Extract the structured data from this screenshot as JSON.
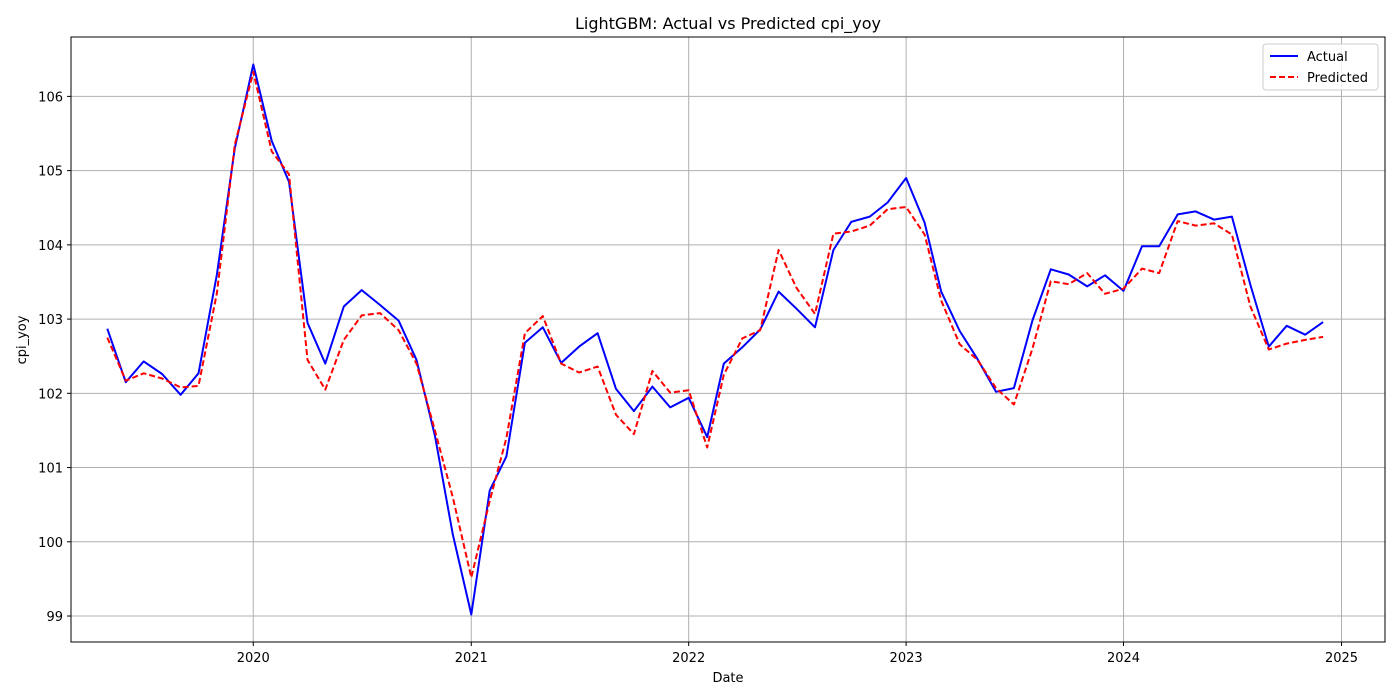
{
  "chart_data": {
    "type": "line",
    "title": "LightGBM: Actual vs Predicted cpi_yoy",
    "xlabel": "Date",
    "ylabel": "cpi_yoy",
    "x_ticks": [
      "2020",
      "2021",
      "2022",
      "2023",
      "2024",
      "2025"
    ],
    "y_ticks": [
      "99",
      "100",
      "101",
      "102",
      "103",
      "104",
      "105",
      "106"
    ],
    "xlim": [
      "2019-03-01",
      "2025-03-15"
    ],
    "ylim": [
      98.65,
      106.8
    ],
    "grid": true,
    "legend_position": "top-right",
    "x": [
      "2019-05-01",
      "2019-06-01",
      "2019-07-01",
      "2019-08-01",
      "2019-09-01",
      "2019-10-01",
      "2019-11-01",
      "2019-12-01",
      "2020-01-01",
      "2020-02-01",
      "2020-03-01",
      "2020-04-01",
      "2020-05-01",
      "2020-06-01",
      "2020-07-01",
      "2020-08-01",
      "2020-09-01",
      "2020-10-01",
      "2020-11-01",
      "2020-12-01",
      "2021-01-01",
      "2021-02-01",
      "2021-03-01",
      "2021-04-01",
      "2021-05-01",
      "2021-06-01",
      "2021-07-01",
      "2021-08-01",
      "2021-09-01",
      "2021-10-01",
      "2021-11-01",
      "2021-12-01",
      "2022-01-01",
      "2022-02-01",
      "2022-03-01",
      "2022-04-01",
      "2022-05-01",
      "2022-06-01",
      "2022-07-01",
      "2022-08-01",
      "2022-09-01",
      "2022-10-01",
      "2022-11-01",
      "2022-12-01",
      "2023-01-01",
      "2023-02-01",
      "2023-03-01",
      "2023-04-01",
      "2023-05-01",
      "2023-06-01",
      "2023-07-01",
      "2023-08-01",
      "2023-09-01",
      "2023-10-01",
      "2023-11-01",
      "2023-12-01",
      "2024-01-01",
      "2024-02-01",
      "2024-03-01",
      "2024-04-01",
      "2024-05-01",
      "2024-06-01",
      "2024-07-01",
      "2024-08-01",
      "2024-09-01",
      "2024-10-01",
      "2024-11-01",
      "2024-12-01"
    ],
    "series": [
      {
        "name": "Actual",
        "color": "#0000ff",
        "style": "solid",
        "values": [
          102.87,
          102.15,
          102.43,
          102.26,
          101.98,
          102.27,
          103.6,
          105.3,
          106.43,
          105.4,
          104.85,
          102.95,
          102.4,
          103.17,
          103.39,
          103.19,
          102.98,
          102.45,
          101.43,
          100.1,
          99.02,
          100.69,
          101.15,
          102.68,
          102.89,
          102.41,
          102.63,
          102.81,
          102.06,
          101.76,
          102.09,
          101.81,
          101.94,
          101.41,
          102.4,
          102.62,
          102.86,
          103.37,
          103.14,
          102.89,
          103.93,
          104.31,
          104.38,
          104.57,
          104.9,
          104.3,
          103.37,
          102.84,
          102.46,
          102.02,
          102.07,
          102.98,
          103.67,
          103.6,
          103.44,
          103.59,
          103.38,
          103.98,
          103.98,
          104.41,
          104.45,
          104.34,
          104.38,
          103.46,
          102.63,
          102.91,
          102.79,
          102.96
        ]
      },
      {
        "name": "Predicted",
        "color": "#ff0000",
        "style": "dashed",
        "values": [
          102.75,
          102.17,
          102.27,
          102.2,
          102.08,
          102.1,
          103.35,
          105.35,
          106.33,
          105.26,
          104.95,
          102.45,
          102.05,
          102.72,
          103.05,
          103.08,
          102.85,
          102.4,
          101.5,
          100.6,
          99.52,
          100.55,
          101.4,
          102.81,
          103.04,
          102.4,
          102.28,
          102.36,
          101.71,
          101.45,
          102.3,
          102.01,
          102.04,
          101.27,
          102.25,
          102.74,
          102.85,
          103.93,
          103.42,
          103.07,
          104.15,
          104.18,
          104.26,
          104.48,
          104.51,
          104.14,
          103.25,
          102.66,
          102.45,
          102.07,
          101.85,
          102.6,
          103.51,
          103.47,
          103.62,
          103.34,
          103.41,
          103.68,
          103.62,
          104.32,
          104.26,
          104.29,
          104.14,
          103.17,
          102.59,
          102.67,
          102.72,
          102.76
        ]
      }
    ]
  }
}
